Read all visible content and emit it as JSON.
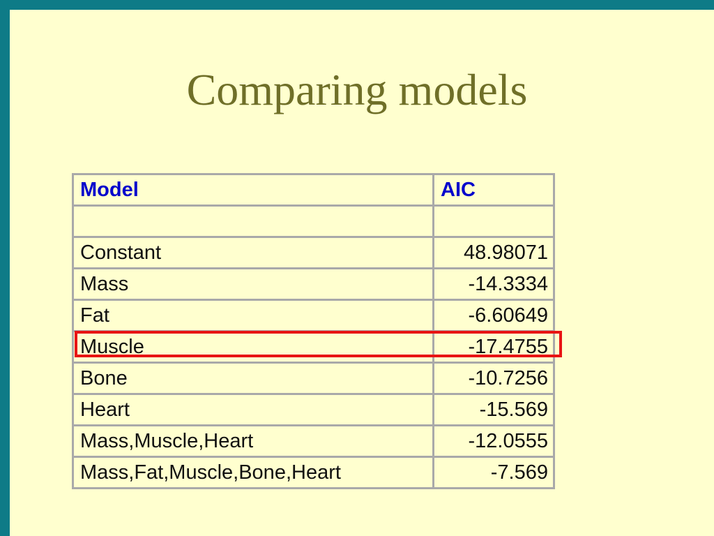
{
  "slide": {
    "title": "Comparing models",
    "colors": {
      "background": "#FFFFCF",
      "frame_teal": "#0E7B87",
      "title_olive": "#6F6F28",
      "header_blue": "#0202CC",
      "body_text": "#101010",
      "table_border_gray": "#A9A9A9",
      "highlight_red": "#E81414"
    }
  },
  "table": {
    "columns": [
      "Model",
      "AIC"
    ],
    "highlighted_model": "Muscle",
    "rows": [
      {
        "model": "",
        "aic": ""
      },
      {
        "model": "Constant",
        "aic": "48.98071"
      },
      {
        "model": "Mass",
        "aic": "-14.3334"
      },
      {
        "model": "Fat",
        "aic": "-6.60649"
      },
      {
        "model": "Muscle",
        "aic": "-17.4755"
      },
      {
        "model": "Bone",
        "aic": "-10.7256"
      },
      {
        "model": "Heart",
        "aic": "-15.569"
      },
      {
        "model": "Mass,Muscle,Heart",
        "aic": "-12.0555"
      },
      {
        "model": "Mass,Fat,Muscle,Bone,Heart",
        "aic": "-7.569"
      }
    ]
  }
}
